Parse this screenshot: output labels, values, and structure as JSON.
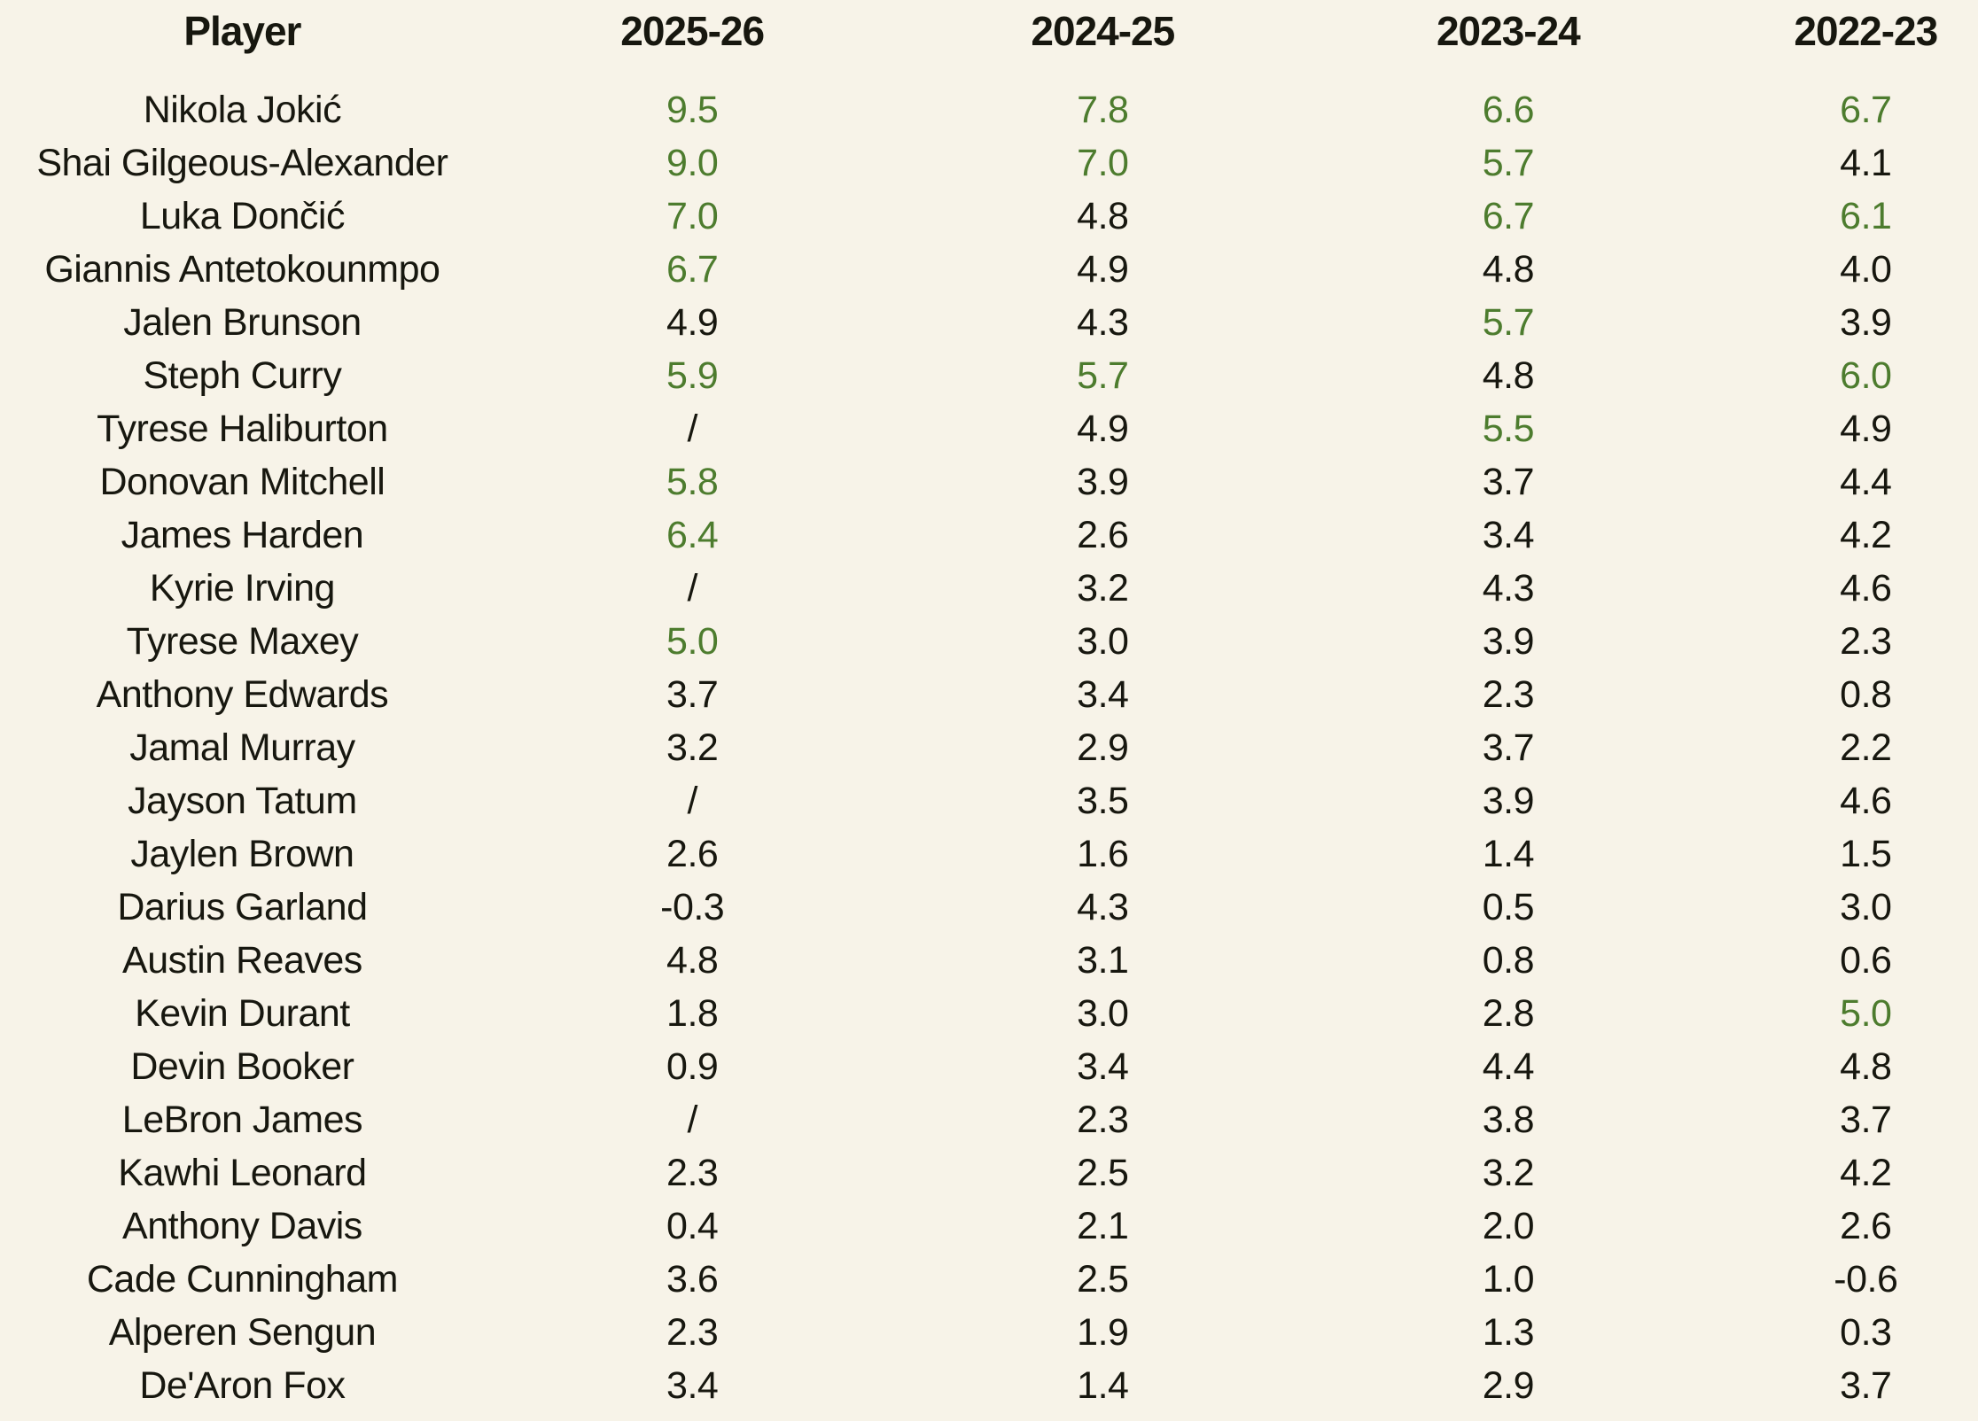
{
  "colors": {
    "background": "#f7f3e8",
    "text": "#17170f",
    "highlight_green": "#4d7c2e"
  },
  "chart_data": {
    "type": "table",
    "title": "",
    "columns": [
      "Player",
      "2025-26",
      "2024-25",
      "2023-24",
      "2022-23"
    ],
    "missing_value_marker": "/",
    "highlight": {
      "rule": "numeric cell values greater than or equal to 5.0 are shown in green",
      "threshold": 5.0,
      "color": "#4d7c2e"
    },
    "rows": [
      {
        "player": "Nikola Jokić",
        "values": [
          "9.5",
          "7.8",
          "6.6",
          "6.7"
        ]
      },
      {
        "player": "Shai Gilgeous-Alexander",
        "values": [
          "9.0",
          "7.0",
          "5.7",
          "4.1"
        ]
      },
      {
        "player": "Luka Dončić",
        "values": [
          "7.0",
          "4.8",
          "6.7",
          "6.1"
        ]
      },
      {
        "player": "Giannis Antetokounmpo",
        "values": [
          "6.7",
          "4.9",
          "4.8",
          "4.0"
        ]
      },
      {
        "player": "Jalen Brunson",
        "values": [
          "4.9",
          "4.3",
          "5.7",
          "3.9"
        ]
      },
      {
        "player": "Steph Curry",
        "values": [
          "5.9",
          "5.7",
          "4.8",
          "6.0"
        ]
      },
      {
        "player": "Tyrese Haliburton",
        "values": [
          "/",
          "4.9",
          "5.5",
          "4.9"
        ]
      },
      {
        "player": "Donovan Mitchell",
        "values": [
          "5.8",
          "3.9",
          "3.7",
          "4.4"
        ]
      },
      {
        "player": "James Harden",
        "values": [
          "6.4",
          "2.6",
          "3.4",
          "4.2"
        ]
      },
      {
        "player": "Kyrie Irving",
        "values": [
          "/",
          "3.2",
          "4.3",
          "4.6"
        ]
      },
      {
        "player": "Tyrese Maxey",
        "values": [
          "5.0",
          "3.0",
          "3.9",
          "2.3"
        ]
      },
      {
        "player": "Anthony Edwards",
        "values": [
          "3.7",
          "3.4",
          "2.3",
          "0.8"
        ]
      },
      {
        "player": "Jamal Murray",
        "values": [
          "3.2",
          "2.9",
          "3.7",
          "2.2"
        ]
      },
      {
        "player": "Jayson Tatum",
        "values": [
          "/",
          "3.5",
          "3.9",
          "4.6"
        ]
      },
      {
        "player": "Jaylen Brown",
        "values": [
          "2.6",
          "1.6",
          "1.4",
          "1.5"
        ]
      },
      {
        "player": "Darius Garland",
        "values": [
          "-0.3",
          "4.3",
          "0.5",
          "3.0"
        ]
      },
      {
        "player": "Austin Reaves",
        "values": [
          "4.8",
          "3.1",
          "0.8",
          "0.6"
        ]
      },
      {
        "player": "Kevin Durant",
        "values": [
          "1.8",
          "3.0",
          "2.8",
          "5.0"
        ]
      },
      {
        "player": "Devin Booker",
        "values": [
          "0.9",
          "3.4",
          "4.4",
          "4.8"
        ]
      },
      {
        "player": "LeBron James",
        "values": [
          "/",
          "2.3",
          "3.8",
          "3.7"
        ]
      },
      {
        "player": "Kawhi Leonard",
        "values": [
          "2.3",
          "2.5",
          "3.2",
          "4.2"
        ]
      },
      {
        "player": "Anthony Davis",
        "values": [
          "0.4",
          "2.1",
          "2.0",
          "2.6"
        ]
      },
      {
        "player": "Cade Cunningham",
        "values": [
          "3.6",
          "2.5",
          "1.0",
          "-0.6"
        ]
      },
      {
        "player": "Alperen Sengun",
        "values": [
          "2.3",
          "1.9",
          "1.3",
          "0.3"
        ]
      },
      {
        "player": "De'Aron Fox",
        "values": [
          "3.4",
          "1.4",
          "2.9",
          "3.7"
        ]
      }
    ]
  }
}
